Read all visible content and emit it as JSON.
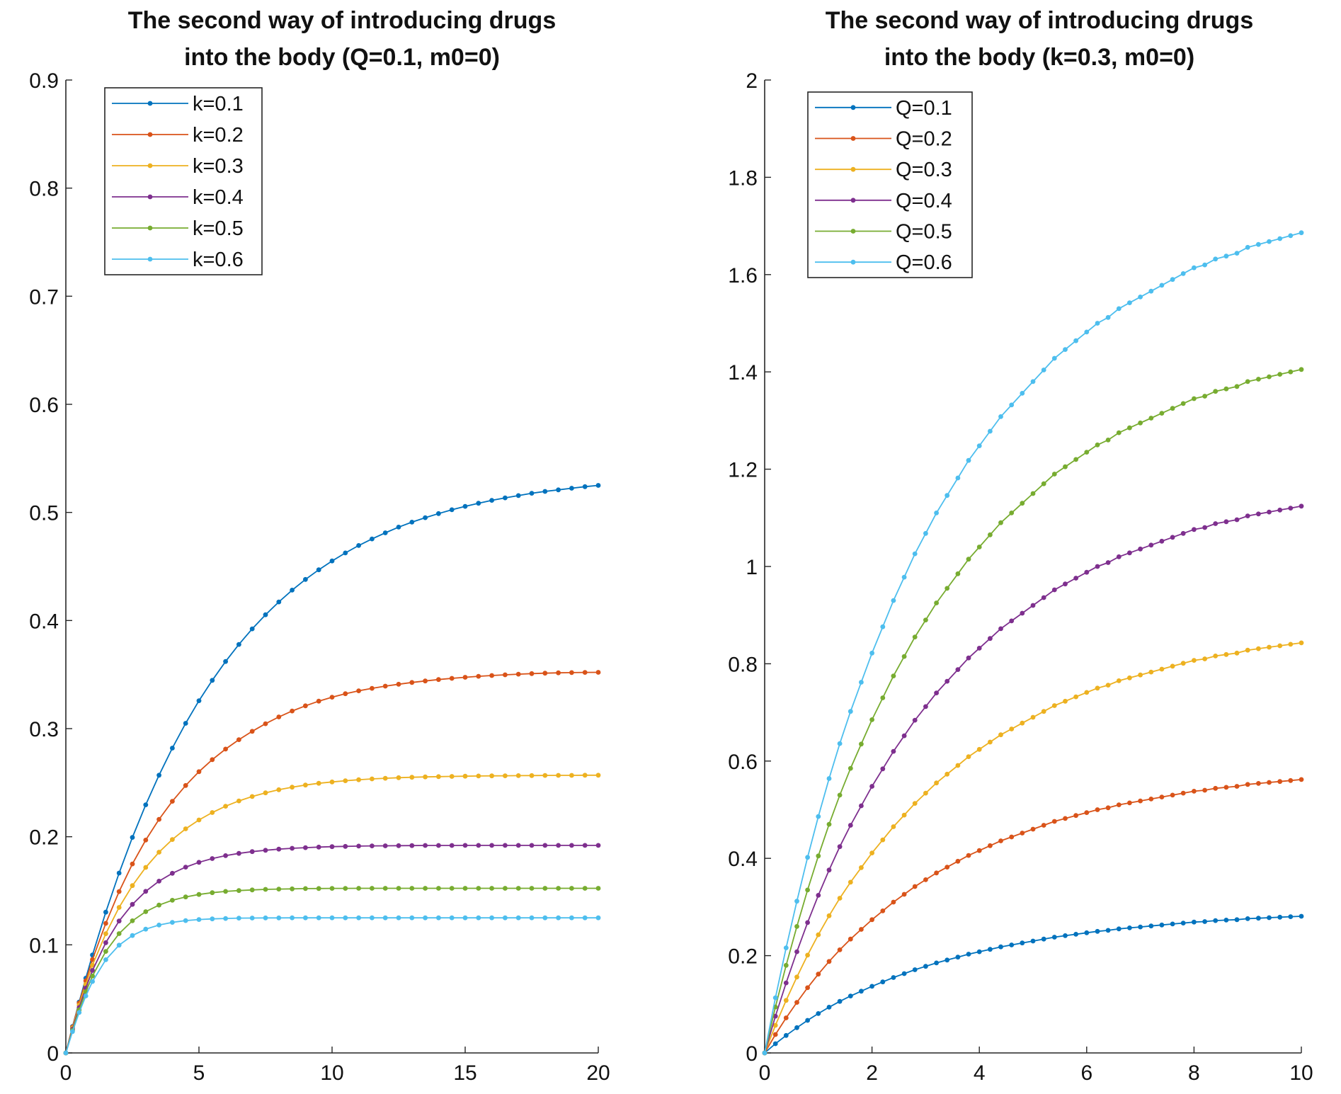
{
  "chart_data": [
    {
      "type": "line",
      "title_lines": [
        "The second way of introducing drugs",
        "into the body (Q=0.1, m0=0)"
      ],
      "xlabel": "",
      "ylabel": "",
      "xlim": [
        0,
        20
      ],
      "ylim": [
        0,
        0.9
      ],
      "xticks": [
        0,
        5,
        10,
        15,
        20
      ],
      "xtick_labels": [
        "0",
        "5",
        "10",
        "15",
        "20"
      ],
      "yticks": [
        0,
        0.1,
        0.2,
        0.3,
        0.4,
        0.5,
        0.6,
        0.7,
        0.8,
        0.9
      ],
      "ytick_labels": [
        "0",
        "0.1",
        "0.2",
        "0.3",
        "0.4",
        "0.5",
        "0.6",
        "0.7",
        "0.8",
        "0.9"
      ],
      "grid": false,
      "legend_position": "top-left",
      "x": [
        0,
        0.25,
        0.5,
        0.75,
        1,
        1.5,
        2,
        2.5,
        3,
        3.5,
        4,
        4.5,
        5,
        5.5,
        6,
        6.5,
        7,
        7.5,
        8,
        8.5,
        9,
        9.5,
        10,
        10.5,
        11,
        11.5,
        12,
        12.5,
        13,
        13.5,
        14,
        14.5,
        15,
        15.5,
        16,
        16.5,
        17,
        17.5,
        18,
        18.5,
        19,
        19.5,
        20
      ],
      "series": [
        {
          "name": "k=0.1",
          "color": "#0072BD",
          "values": [
            0,
            0.0244,
            0.0471,
            0.0692,
            0.0906,
            0.1302,
            0.1664,
            0.1994,
            0.2295,
            0.2569,
            0.282,
            0.3049,
            0.3258,
            0.3447,
            0.3621,
            0.3779,
            0.3923,
            0.4053,
            0.4172,
            0.4281,
            0.438,
            0.4469,
            0.4551,
            0.4625,
            0.4694,
            0.4755,
            0.4811,
            0.4864,
            0.491,
            0.4951,
            0.4989,
            0.5025,
            0.5056,
            0.5085,
            0.5112,
            0.5135,
            0.5156,
            0.5177,
            0.5194,
            0.5209,
            0.5224,
            0.5238,
            0.525
          ]
        },
        {
          "name": "k=0.2",
          "color": "#D95319",
          "values": [
            0,
            0.024,
            0.0462,
            0.0667,
            0.0864,
            0.1199,
            0.1493,
            0.1748,
            0.1969,
            0.2161,
            0.2328,
            0.2474,
            0.2602,
            0.2713,
            0.2811,
            0.2898,
            0.2975,
            0.3045,
            0.3108,
            0.3163,
            0.3211,
            0.3254,
            0.3291,
            0.3323,
            0.335,
            0.3373,
            0.3393,
            0.3411,
            0.3427,
            0.3441,
            0.3454,
            0.3465,
            0.3475,
            0.3484,
            0.3491,
            0.3498,
            0.3504,
            0.3509,
            0.3513,
            0.3516,
            0.3518,
            0.352,
            0.3521
          ]
        },
        {
          "name": "k=0.3",
          "color": "#EDB120",
          "values": [
            0,
            0.0231,
            0.0442,
            0.0634,
            0.0812,
            0.1103,
            0.1346,
            0.1548,
            0.1716,
            0.1857,
            0.1974,
            0.2073,
            0.2155,
            0.2224,
            0.2282,
            0.2331,
            0.2372,
            0.2406,
            0.2435,
            0.2458,
            0.2478,
            0.2494,
            0.2507,
            0.2518,
            0.2527,
            0.2535,
            0.2541,
            0.2546,
            0.255,
            0.2553,
            0.2556,
            0.2558,
            0.256,
            0.2562,
            0.2563,
            0.2564,
            0.2565,
            0.2566,
            0.2567,
            0.2568,
            0.2568,
            0.2569,
            0.2569
          ]
        },
        {
          "name": "k=0.4",
          "color": "#7E2F8E",
          "values": [
            0,
            0.022,
            0.042,
            0.06,
            0.0763,
            0.102,
            0.122,
            0.1374,
            0.1495,
            0.1589,
            0.1662,
            0.1719,
            0.1763,
            0.1798,
            0.1825,
            0.1846,
            0.1862,
            0.1875,
            0.1885,
            0.1893,
            0.1899,
            0.1904,
            0.1908,
            0.1911,
            0.1913,
            0.1915,
            0.1916,
            0.1917,
            0.1918,
            0.1919,
            0.1919,
            0.1919,
            0.192,
            0.192,
            0.192,
            0.192,
            0.192,
            0.192,
            0.192,
            0.192,
            0.192,
            0.192,
            0.192
          ]
        },
        {
          "name": "k=0.5",
          "color": "#77AC30",
          "values": [
            0,
            0.0209,
            0.0398,
            0.0565,
            0.0712,
            0.0939,
            0.1104,
            0.1222,
            0.1307,
            0.1368,
            0.1412,
            0.1443,
            0.1466,
            0.1482,
            0.1494,
            0.1502,
            0.1508,
            0.1513,
            0.1516,
            0.1518,
            0.152,
            0.1521,
            0.1522,
            0.1522,
            0.1523,
            0.1523,
            0.1523,
            0.1523,
            0.1523,
            0.1523,
            0.1523,
            0.1523,
            0.1523,
            0.1523,
            0.1523,
            0.1523,
            0.1523,
            0.1523,
            0.1523,
            0.1523,
            0.1523,
            0.1523,
            0.1523
          ]
        },
        {
          "name": "k=0.6",
          "color": "#4DBEEE",
          "values": [
            0,
            0.0198,
            0.0374,
            0.0527,
            0.0661,
            0.0862,
            0.0997,
            0.1086,
            0.1145,
            0.1183,
            0.1208,
            0.1224,
            0.1234,
            0.124,
            0.1244,
            0.1247,
            0.1248,
            0.1249,
            0.1249,
            0.125,
            0.125,
            0.125,
            0.125,
            0.125,
            0.125,
            0.125,
            0.125,
            0.125,
            0.125,
            0.125,
            0.125,
            0.125,
            0.125,
            0.125,
            0.125,
            0.125,
            0.125,
            0.125,
            0.125,
            0.125,
            0.125,
            0.125,
            0.125
          ]
        }
      ]
    },
    {
      "type": "line",
      "title_lines": [
        "The second way of introducing drugs",
        "into the body  (k=0.3, m0=0)"
      ],
      "xlabel": "",
      "ylabel": "",
      "xlim": [
        0,
        10
      ],
      "ylim": [
        0,
        2
      ],
      "xticks": [
        0,
        2,
        4,
        6,
        8,
        10
      ],
      "xtick_labels": [
        "0",
        "2",
        "4",
        "6",
        "8",
        "10"
      ],
      "yticks": [
        0,
        0.2,
        0.4,
        0.6,
        0.8,
        1,
        1.2,
        1.4,
        1.6,
        1.8,
        2
      ],
      "ytick_labels": [
        "0",
        "0.2",
        "0.4",
        "0.6",
        "0.8",
        "1",
        "1.2",
        "1.4",
        "1.6",
        "1.8",
        "2"
      ],
      "grid": false,
      "legend_position": "top-left",
      "x": [
        0,
        0.2,
        0.4,
        0.6,
        0.8,
        1,
        1.2,
        1.4,
        1.6,
        1.8,
        2,
        2.2,
        2.4,
        2.6,
        2.8,
        3,
        3.2,
        3.4,
        3.6,
        3.8,
        4,
        4.2,
        4.4,
        4.6,
        4.8,
        5,
        5.2,
        5.4,
        5.6,
        5.8,
        6,
        6.2,
        6.4,
        6.6,
        6.8,
        7,
        7.2,
        7.4,
        7.6,
        7.8,
        8,
        8.2,
        8.4,
        8.6,
        8.8,
        9,
        9.2,
        9.4,
        9.6,
        9.8,
        10
      ],
      "series": [
        {
          "name": "Q=0.1",
          "color": "#0072BD",
          "values": [
            0,
            0.0189,
            0.036,
            0.052,
            0.067,
            0.081,
            0.094,
            0.106,
            0.117,
            0.127,
            0.137,
            0.146,
            0.155,
            0.163,
            0.171,
            0.178,
            0.185,
            0.191,
            0.197,
            0.203,
            0.208,
            0.213,
            0.218,
            0.222,
            0.226,
            0.23,
            0.234,
            0.238,
            0.241,
            0.244,
            0.247,
            0.25,
            0.252,
            0.255,
            0.257,
            0.259,
            0.261,
            0.263,
            0.265,
            0.267,
            0.269,
            0.27,
            0.272,
            0.273,
            0.274,
            0.276,
            0.277,
            0.278,
            0.279,
            0.28,
            0.281
          ]
        },
        {
          "name": "Q=0.2",
          "color": "#D95319",
          "values": [
            0,
            0.0378,
            0.072,
            0.104,
            0.134,
            0.162,
            0.188,
            0.212,
            0.234,
            0.254,
            0.274,
            0.292,
            0.31,
            0.326,
            0.342,
            0.356,
            0.37,
            0.382,
            0.394,
            0.406,
            0.416,
            0.426,
            0.436,
            0.444,
            0.452,
            0.46,
            0.468,
            0.476,
            0.482,
            0.488,
            0.494,
            0.5,
            0.504,
            0.51,
            0.514,
            0.518,
            0.522,
            0.526,
            0.53,
            0.534,
            0.538,
            0.54,
            0.544,
            0.546,
            0.548,
            0.552,
            0.554,
            0.556,
            0.558,
            0.56,
            0.562
          ]
        },
        {
          "name": "Q=0.3",
          "color": "#EDB120",
          "values": [
            0,
            0.0567,
            0.108,
            0.156,
            0.201,
            0.243,
            0.282,
            0.318,
            0.351,
            0.381,
            0.411,
            0.438,
            0.465,
            0.489,
            0.513,
            0.534,
            0.555,
            0.573,
            0.591,
            0.609,
            0.624,
            0.639,
            0.654,
            0.666,
            0.678,
            0.69,
            0.702,
            0.714,
            0.723,
            0.732,
            0.741,
            0.75,
            0.756,
            0.765,
            0.771,
            0.777,
            0.783,
            0.789,
            0.795,
            0.801,
            0.807,
            0.81,
            0.816,
            0.819,
            0.822,
            0.828,
            0.831,
            0.834,
            0.837,
            0.84,
            0.843
          ]
        },
        {
          "name": "Q=0.4",
          "color": "#7E2F8E",
          "values": [
            0,
            0.0756,
            0.144,
            0.208,
            0.268,
            0.324,
            0.376,
            0.424,
            0.468,
            0.508,
            0.548,
            0.584,
            0.62,
            0.652,
            0.684,
            0.712,
            0.74,
            0.764,
            0.788,
            0.812,
            0.832,
            0.852,
            0.872,
            0.888,
            0.904,
            0.92,
            0.936,
            0.952,
            0.964,
            0.976,
            0.988,
            1.0,
            1.008,
            1.02,
            1.028,
            1.036,
            1.044,
            1.052,
            1.06,
            1.068,
            1.076,
            1.08,
            1.088,
            1.092,
            1.096,
            1.104,
            1.108,
            1.112,
            1.116,
            1.12,
            1.124
          ]
        },
        {
          "name": "Q=0.5",
          "color": "#77AC30",
          "values": [
            0,
            0.0945,
            0.18,
            0.26,
            0.335,
            0.405,
            0.47,
            0.53,
            0.585,
            0.635,
            0.685,
            0.73,
            0.775,
            0.815,
            0.855,
            0.89,
            0.925,
            0.955,
            0.985,
            1.015,
            1.04,
            1.065,
            1.09,
            1.11,
            1.13,
            1.15,
            1.17,
            1.19,
            1.205,
            1.22,
            1.235,
            1.25,
            1.26,
            1.275,
            1.285,
            1.295,
            1.305,
            1.315,
            1.325,
            1.335,
            1.345,
            1.35,
            1.36,
            1.365,
            1.37,
            1.38,
            1.385,
            1.39,
            1.395,
            1.4,
            1.405
          ]
        },
        {
          "name": "Q=0.6",
          "color": "#4DBEEE",
          "values": [
            0,
            0.1134,
            0.216,
            0.312,
            0.402,
            0.486,
            0.564,
            0.636,
            0.702,
            0.762,
            0.822,
            0.876,
            0.93,
            0.978,
            1.026,
            1.068,
            1.11,
            1.146,
            1.182,
            1.218,
            1.248,
            1.278,
            1.308,
            1.332,
            1.356,
            1.38,
            1.404,
            1.428,
            1.446,
            1.464,
            1.482,
            1.5,
            1.512,
            1.53,
            1.542,
            1.554,
            1.566,
            1.578,
            1.59,
            1.602,
            1.614,
            1.62,
            1.632,
            1.638,
            1.644,
            1.656,
            1.662,
            1.668,
            1.674,
            1.68,
            1.686
          ]
        }
      ]
    }
  ]
}
